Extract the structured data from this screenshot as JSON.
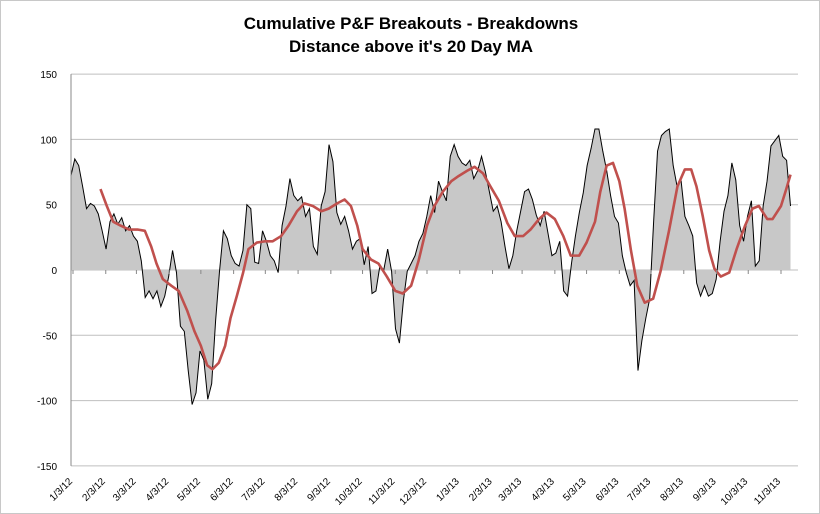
{
  "chart_data": {
    "type": "area",
    "title": [
      "Cumulative P&F Breakouts - Breakdowns",
      "Distance above it's 20 Day MA"
    ],
    "xlabel": "",
    "ylabel": "",
    "ylim": [
      -150,
      150
    ],
    "yticks": [
      150,
      100,
      50,
      0,
      -50,
      -100,
      -150
    ],
    "x_start_date": "2012-01-03",
    "xtick_labels": [
      "1/3/12",
      "2/3/12",
      "3/3/12",
      "4/3/12",
      "5/3/12",
      "6/3/12",
      "7/3/12",
      "8/3/12",
      "9/3/12",
      "10/3/12",
      "11/3/12",
      "12/3/12",
      "1/3/13",
      "2/3/13",
      "3/3/13",
      "4/3/13",
      "5/3/13",
      "6/3/13",
      "7/3/13",
      "8/3/13",
      "9/3/13",
      "10/3/13",
      "11/3/13"
    ],
    "grid": true,
    "legend": "none",
    "colors": {
      "area_fill": "#c8c8c8",
      "area_line": "#000000",
      "ma_line": "#c0504d",
      "grid": "#bfbfbf"
    },
    "series": [
      {
        "name": "Distance above 20 Day MA",
        "x_day_range": [
          -2,
          679
        ],
        "values": [
          72,
          85,
          80,
          64,
          47,
          51,
          49,
          43,
          30,
          16,
          37,
          43,
          35,
          40,
          30,
          34,
          26,
          22,
          7,
          -21,
          -16,
          -22,
          -16,
          -28,
          -20,
          -5,
          15,
          -2,
          -43,
          -47,
          -77,
          -103,
          -94,
          -62,
          -69,
          -99,
          -87,
          -39,
          -1,
          30,
          24,
          11,
          5,
          3,
          15,
          50,
          47,
          6,
          5,
          30,
          22,
          11,
          7,
          -2,
          34,
          49,
          70,
          57,
          53,
          56,
          41,
          47,
          18,
          12,
          49,
          60,
          96,
          83,
          44,
          35,
          41,
          30,
          16,
          22,
          24,
          4,
          18,
          -18,
          -16,
          3,
          0,
          16,
          -1,
          -45,
          -56,
          -24,
          -1,
          5,
          11,
          22,
          28,
          41,
          57,
          44,
          68,
          60,
          53,
          87,
          96,
          87,
          82,
          80,
          84,
          70,
          76,
          87,
          75,
          60,
          45,
          49,
          37,
          18,
          1,
          11,
          30,
          45,
          60,
          62,
          54,
          42,
          34,
          45,
          28,
          11,
          13,
          22,
          -16,
          -20,
          5,
          26,
          44,
          59,
          80,
          93,
          108,
          108,
          91,
          76,
          57,
          41,
          36,
          11,
          -2,
          -12,
          -8,
          -77,
          -54,
          -37,
          -22,
          37,
          91,
          103,
          106,
          108,
          80,
          64,
          69,
          41,
          34,
          26,
          -10,
          -20,
          -12,
          -20,
          -18,
          -7,
          22,
          45,
          57,
          82,
          69,
          34,
          22,
          41,
          53,
          3,
          7,
          49,
          68,
          95,
          99,
          103,
          87,
          84,
          49
        ]
      },
      {
        "name": "20 Day MA",
        "points": [
          [
            26,
            62
          ],
          [
            32,
            49
          ],
          [
            38,
            37
          ],
          [
            45,
            34
          ],
          [
            53,
            31
          ],
          [
            61,
            31
          ],
          [
            68,
            30
          ],
          [
            74,
            18
          ],
          [
            79,
            5
          ],
          [
            85,
            -7
          ],
          [
            93,
            -12
          ],
          [
            100,
            -16
          ],
          [
            108,
            -31
          ],
          [
            115,
            -47
          ],
          [
            121,
            -58
          ],
          [
            127,
            -73
          ],
          [
            132,
            -76
          ],
          [
            138,
            -71
          ],
          [
            144,
            -58
          ],
          [
            149,
            -37
          ],
          [
            155,
            -20
          ],
          [
            161,
            -2
          ],
          [
            166,
            16
          ],
          [
            174,
            21
          ],
          [
            182,
            22
          ],
          [
            189,
            22
          ],
          [
            197,
            26
          ],
          [
            204,
            34
          ],
          [
            212,
            45
          ],
          [
            219,
            51
          ],
          [
            227,
            49
          ],
          [
            235,
            45
          ],
          [
            242,
            47
          ],
          [
            250,
            51
          ],
          [
            257,
            54
          ],
          [
            263,
            49
          ],
          [
            269,
            34
          ],
          [
            274,
            16
          ],
          [
            282,
            8
          ],
          [
            289,
            5
          ],
          [
            297,
            -5
          ],
          [
            305,
            -16
          ],
          [
            312,
            -18
          ],
          [
            320,
            -12
          ],
          [
            327,
            7
          ],
          [
            335,
            34
          ],
          [
            342,
            49
          ],
          [
            350,
            60
          ],
          [
            358,
            68
          ],
          [
            365,
            72
          ],
          [
            373,
            76
          ],
          [
            380,
            79
          ],
          [
            388,
            74
          ],
          [
            395,
            64
          ],
          [
            403,
            53
          ],
          [
            411,
            36
          ],
          [
            418,
            26
          ],
          [
            426,
            26
          ],
          [
            433,
            31
          ],
          [
            441,
            39
          ],
          [
            448,
            44
          ],
          [
            456,
            39
          ],
          [
            464,
            26
          ],
          [
            471,
            11
          ],
          [
            479,
            11
          ],
          [
            486,
            21
          ],
          [
            494,
            37
          ],
          [
            499,
            60
          ],
          [
            505,
            80
          ],
          [
            511,
            82
          ],
          [
            517,
            68
          ],
          [
            522,
            47
          ],
          [
            528,
            15
          ],
          [
            534,
            -12
          ],
          [
            541,
            -25
          ],
          [
            549,
            -22
          ],
          [
            556,
            -1
          ],
          [
            564,
            30
          ],
          [
            572,
            64
          ],
          [
            579,
            77
          ],
          [
            585,
            77
          ],
          [
            590,
            64
          ],
          [
            596,
            41
          ],
          [
            602,
            15
          ],
          [
            607,
            1
          ],
          [
            613,
            -5
          ],
          [
            621,
            -2
          ],
          [
            628,
            16
          ],
          [
            636,
            34
          ],
          [
            643,
            47
          ],
          [
            649,
            49
          ],
          [
            657,
            39
          ],
          [
            662,
            39
          ],
          [
            670,
            49
          ],
          [
            675,
            62
          ],
          [
            679,
            73
          ]
        ]
      }
    ]
  }
}
